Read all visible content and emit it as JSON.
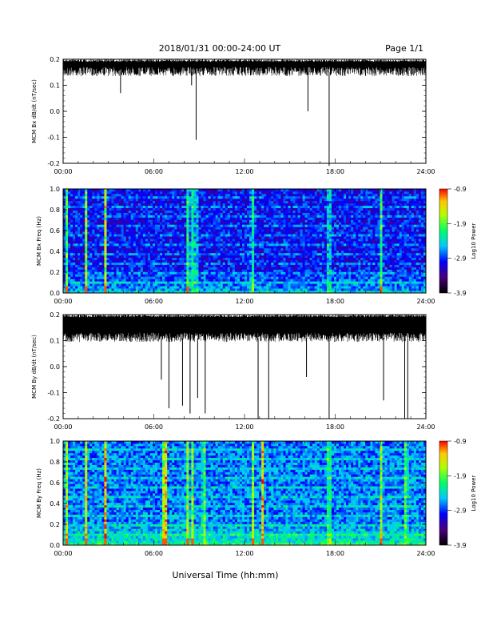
{
  "header": {
    "title": "2018/01/31  00:00-24:00 UT",
    "page": "Page 1/1"
  },
  "xlabel": "Universal Time (hh:mm)",
  "colorbar": {
    "label": "Log10 Power",
    "ticks": [
      "-0.9",
      "-1.9",
      "-2.9",
      "-3.9"
    ]
  },
  "chart_data": [
    {
      "type": "line",
      "ylabel": "MCM Bx dB/dt (nT/sec)",
      "xlim": [
        0,
        24
      ],
      "ylim": [
        -0.2,
        0.2
      ],
      "xticks": [
        "00:00",
        "06:00",
        "12:00",
        "18:00",
        "24:00"
      ],
      "yticks": [
        "0.2",
        "0.1",
        "0.0",
        "-0.1",
        "-0.2"
      ],
      "baseline": [
        0.17,
        0.2
      ],
      "spikes": [
        [
          3.8,
          0.07
        ],
        [
          8.5,
          0.1
        ],
        [
          8.8,
          -0.11
        ],
        [
          16.2,
          0.0
        ],
        [
          17.6,
          -0.21
        ]
      ]
    },
    {
      "type": "heatmap",
      "ylabel": "MCM Bx Freq (Hz)",
      "xlim": [
        0,
        24
      ],
      "ylim": [
        0.0,
        1.0
      ],
      "xticks": [
        "00:00",
        "06:00",
        "12:00",
        "18:00",
        "24:00"
      ],
      "yticks": [
        "1.0",
        "0.8",
        "0.6",
        "0.4",
        "0.2",
        "0.0"
      ],
      "zlim": [
        -3.9,
        -0.9
      ],
      "events": [
        0.2,
        1.5,
        2.8,
        8.2,
        8.5,
        8.8,
        12.5,
        17.6,
        21.0
      ]
    },
    {
      "type": "line",
      "ylabel": "MCM By dB/dt (nT/sec)",
      "xlim": [
        0,
        24
      ],
      "ylim": [
        -0.2,
        0.2
      ],
      "xticks": [
        "00:00",
        "06:00",
        "12:00",
        "18:00",
        "24:00"
      ],
      "yticks": [
        "0.2",
        "0.1",
        "0.0",
        "-0.1",
        "-0.2"
      ],
      "baseline": [
        0.13,
        0.2
      ],
      "spikes": [
        [
          6.5,
          -0.05
        ],
        [
          7.0,
          -0.16
        ],
        [
          7.9,
          -0.15
        ],
        [
          8.4,
          -0.18
        ],
        [
          8.9,
          -0.12
        ],
        [
          9.4,
          -0.18
        ],
        [
          12.9,
          -0.2
        ],
        [
          13.6,
          -0.2
        ],
        [
          16.1,
          -0.04
        ],
        [
          17.6,
          -0.2
        ],
        [
          21.2,
          -0.13
        ],
        [
          22.6,
          -0.2
        ],
        [
          22.8,
          -0.2
        ]
      ]
    },
    {
      "type": "heatmap",
      "ylabel": "MCM By Freq (Hz)",
      "xlim": [
        0,
        24
      ],
      "ylim": [
        0.0,
        1.0
      ],
      "xticks": [
        "00:00",
        "06:00",
        "12:00",
        "18:00",
        "24:00"
      ],
      "yticks": [
        "1.0",
        "0.8",
        "0.6",
        "0.4",
        "0.2",
        "0.0"
      ],
      "zlim": [
        -3.9,
        -0.9
      ],
      "events": [
        0.2,
        1.5,
        2.8,
        6.6,
        6.8,
        8.2,
        8.6,
        9.3,
        12.6,
        13.2,
        17.6,
        21.0,
        22.7
      ]
    }
  ]
}
